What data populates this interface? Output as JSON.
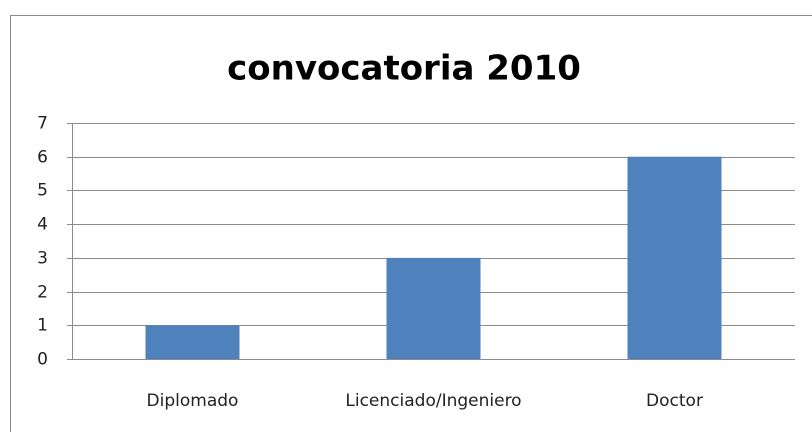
{
  "chart_data": {
    "type": "bar",
    "title": "convocatoria 2010",
    "categories": [
      "Diplomado",
      "Licenciado/Ingeniero",
      "Doctor"
    ],
    "values": [
      1,
      3,
      6
    ],
    "color": "#4f81bd",
    "ylim": [
      0,
      7
    ],
    "yticks": [
      0,
      1,
      2,
      3,
      4,
      5,
      6,
      7
    ],
    "grid": true
  }
}
